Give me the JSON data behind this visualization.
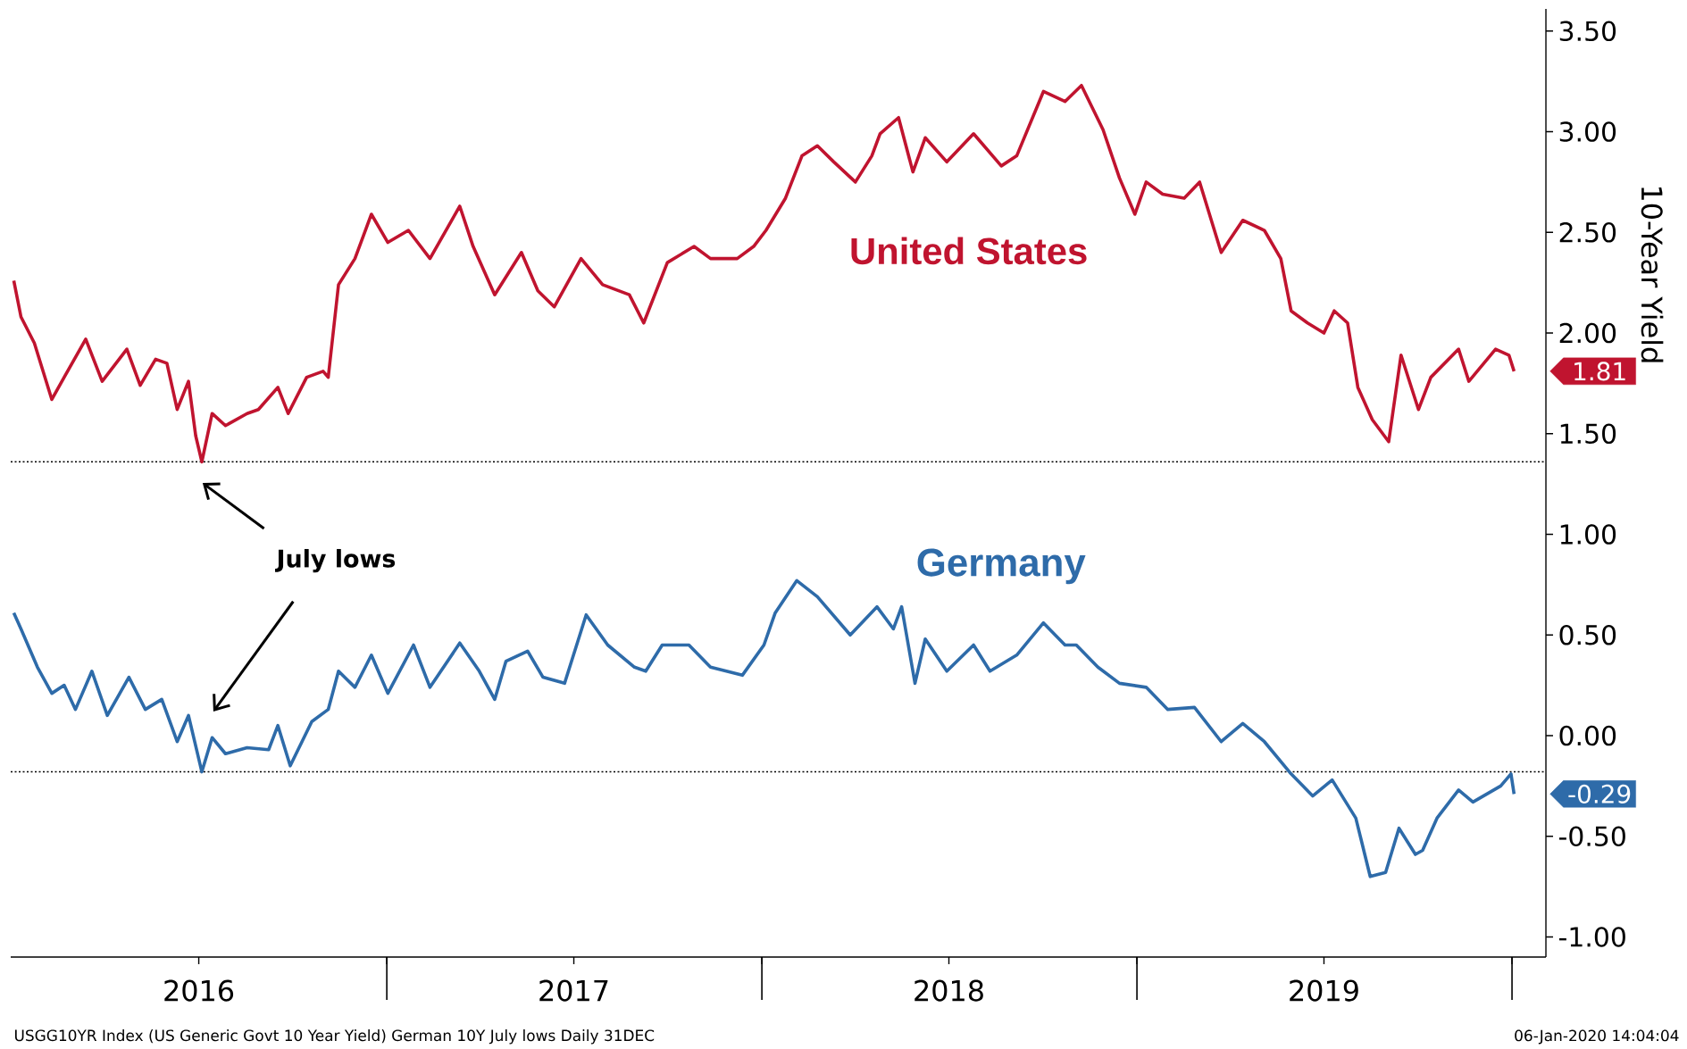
{
  "chart_data": {
    "type": "line",
    "ylabel": "10-Year Yield",
    "xlim": [
      "2016-01-01",
      "2020-02-03"
    ],
    "xticks": [
      {
        "value": "2016-07-02",
        "label": "2016"
      },
      {
        "value": "2017-01-01",
        "label": null
      },
      {
        "value": "2017-07-02",
        "label": "2017"
      },
      {
        "value": "2018-01-01",
        "label": null
      },
      {
        "value": "2018-07-02",
        "label": "2018"
      },
      {
        "value": "2019-01-01",
        "label": null
      },
      {
        "value": "2019-07-02",
        "label": "2019"
      },
      {
        "value": "2020-01-01",
        "label": null
      }
    ],
    "ylim": [
      -1.1,
      3.61
    ],
    "yticks": [
      {
        "value": -1,
        "label": "-1.00"
      },
      {
        "value": -0.5,
        "label": "-0.50"
      },
      {
        "value": 0,
        "label": "0.00"
      },
      {
        "value": 0.5,
        "label": "0.50"
      },
      {
        "value": 1,
        "label": "1.00"
      },
      {
        "value": 1.5,
        "label": "1.50"
      },
      {
        "value": 2,
        "label": "2.00"
      },
      {
        "value": 2.5,
        "label": "2.50"
      },
      {
        "value": 3,
        "label": "3.00"
      },
      {
        "value": 3.5,
        "label": "3.50"
      }
    ],
    "series": [
      {
        "name": "United States",
        "color": "#c0142f",
        "x": [
          "2016-01-04",
          "2016-01-11",
          "2016-01-24",
          "2016-02-10",
          "2016-02-22",
          "2016-03-14",
          "2016-03-30",
          "2016-04-23",
          "2016-05-06",
          "2016-05-21",
          "2016-06-01",
          "2016-06-11",
          "2016-06-22",
          "2016-06-29",
          "2016-07-05",
          "2016-07-15",
          "2016-07-28",
          "2016-08-18",
          "2016-08-29",
          "2016-09-17",
          "2016-09-27",
          "2016-10-15",
          "2016-10-31",
          "2016-11-05",
          "2016-11-15",
          "2016-12-01",
          "2016-12-17",
          "2017-01-02",
          "2017-01-22",
          "2017-02-12",
          "2017-03-13",
          "2017-03-26",
          "2017-04-16",
          "2017-05-12",
          "2017-05-28",
          "2017-06-13",
          "2017-07-09",
          "2017-07-30",
          "2017-08-25",
          "2017-09-08",
          "2017-10-01",
          "2017-10-27",
          "2017-11-12",
          "2017-12-08",
          "2017-12-24",
          "2018-01-05",
          "2018-01-24",
          "2018-02-09",
          "2018-02-24",
          "2018-03-12",
          "2018-04-02",
          "2018-04-18",
          "2018-04-26",
          "2018-05-14",
          "2018-05-28",
          "2018-06-09",
          "2018-06-30",
          "2018-07-26",
          "2018-08-22",
          "2018-09-06",
          "2018-10-02",
          "2018-10-23",
          "2018-11-08",
          "2018-11-29",
          "2018-12-15",
          "2018-12-30",
          "2019-01-10",
          "2019-01-26",
          "2019-02-16",
          "2019-03-03",
          "2019-03-24",
          "2019-04-14",
          "2019-05-05",
          "2019-05-21",
          "2019-05-31",
          "2019-06-16",
          "2019-07-02",
          "2019-07-12",
          "2019-07-25",
          "2019-08-04",
          "2019-08-18",
          "2019-09-03",
          "2019-09-15",
          "2019-10-02",
          "2019-10-14",
          "2019-11-10",
          "2019-11-20",
          "2019-12-16",
          "2019-12-29",
          "2020-01-03"
        ],
        "values": [
          2.26,
          2.08,
          1.95,
          1.67,
          1.78,
          1.97,
          1.76,
          1.92,
          1.74,
          1.87,
          1.85,
          1.62,
          1.76,
          1.49,
          1.36,
          1.6,
          1.54,
          1.6,
          1.62,
          1.73,
          1.6,
          1.78,
          1.81,
          1.78,
          2.24,
          2.37,
          2.59,
          2.45,
          2.51,
          2.37,
          2.63,
          2.43,
          2.19,
          2.4,
          2.21,
          2.13,
          2.37,
          2.24,
          2.19,
          2.05,
          2.35,
          2.43,
          2.37,
          2.37,
          2.43,
          2.51,
          2.67,
          2.88,
          2.93,
          2.85,
          2.75,
          2.88,
          2.99,
          3.07,
          2.8,
          2.97,
          2.85,
          2.99,
          2.83,
          2.88,
          3.2,
          3.15,
          3.23,
          3.01,
          2.77,
          2.59,
          2.75,
          2.69,
          2.67,
          2.75,
          2.4,
          2.56,
          2.51,
          2.37,
          2.11,
          2.05,
          2.0,
          2.11,
          2.05,
          1.73,
          1.57,
          1.46,
          1.89,
          1.62,
          1.78,
          1.92,
          1.76,
          1.92,
          1.89,
          1.81
        ]
      },
      {
        "name": "Germany",
        "color": "#2e6ba9",
        "x": [
          "2016-01-04",
          "2016-01-11",
          "2016-01-27",
          "2016-02-10",
          "2016-02-22",
          "2016-03-04",
          "2016-03-20",
          "2016-04-04",
          "2016-04-25",
          "2016-05-11",
          "2016-05-27",
          "2016-06-11",
          "2016-06-22",
          "2016-07-05",
          "2016-07-15",
          "2016-07-28",
          "2016-08-18",
          "2016-09-08",
          "2016-09-17",
          "2016-09-29",
          "2016-10-20",
          "2016-11-05",
          "2016-11-15",
          "2016-12-01",
          "2016-12-17",
          "2017-01-02",
          "2017-01-27",
          "2017-02-12",
          "2017-03-13",
          "2017-04-01",
          "2017-04-16",
          "2017-04-27",
          "2017-05-18",
          "2017-06-02",
          "2017-06-23",
          "2017-07-14",
          "2017-08-04",
          "2017-08-30",
          "2017-09-10",
          "2017-09-26",
          "2017-10-22",
          "2017-11-12",
          "2017-12-13",
          "2018-01-03",
          "2018-01-14",
          "2018-02-04",
          "2018-02-24",
          "2018-03-28",
          "2018-04-23",
          "2018-05-09",
          "2018-05-17",
          "2018-05-30",
          "2018-06-09",
          "2018-06-30",
          "2018-07-26",
          "2018-08-11",
          "2018-09-06",
          "2018-10-02",
          "2018-10-23",
          "2018-11-03",
          "2018-11-24",
          "2018-12-15",
          "2019-01-10",
          "2019-01-31",
          "2019-02-26",
          "2019-03-24",
          "2019-04-14",
          "2019-05-05",
          "2019-05-31",
          "2019-06-21",
          "2019-07-10",
          "2019-08-02",
          "2019-08-16",
          "2019-08-31",
          "2019-09-13",
          "2019-09-29",
          "2019-10-06",
          "2019-10-20",
          "2019-11-10",
          "2019-11-24",
          "2019-12-21",
          "2019-12-31",
          "2020-01-03"
        ],
        "values": [
          0.61,
          0.53,
          0.34,
          0.21,
          0.25,
          0.13,
          0.32,
          0.1,
          0.29,
          0.13,
          0.18,
          -0.03,
          0.1,
          -0.18,
          -0.01,
          -0.09,
          -0.06,
          -0.07,
          0.05,
          -0.15,
          0.07,
          0.13,
          0.32,
          0.24,
          0.4,
          0.21,
          0.45,
          0.24,
          0.46,
          0.32,
          0.18,
          0.37,
          0.42,
          0.29,
          0.26,
          0.6,
          0.45,
          0.34,
          0.32,
          0.45,
          0.45,
          0.34,
          0.3,
          0.45,
          0.61,
          0.77,
          0.69,
          0.5,
          0.64,
          0.53,
          0.64,
          0.26,
          0.48,
          0.32,
          0.45,
          0.32,
          0.4,
          0.56,
          0.45,
          0.45,
          0.34,
          0.26,
          0.24,
          0.13,
          0.14,
          -0.03,
          0.06,
          -0.03,
          -0.19,
          -0.3,
          -0.22,
          -0.41,
          -0.7,
          -0.68,
          -0.46,
          -0.59,
          -0.57,
          -0.41,
          -0.27,
          -0.33,
          -0.25,
          -0.19,
          -0.29
        ]
      }
    ],
    "ref_lines": [
      {
        "axis": "y",
        "value": 1.36,
        "color": "#000000",
        "line_style": "dotted"
      },
      {
        "axis": "y",
        "value": -0.18,
        "color": "#000000",
        "line_style": "dotted"
      }
    ],
    "annotations": [
      "July lows",
      {
        "text": "1.81",
        "x": "2020-01-03",
        "y": 1.81
      },
      {
        "text": "-0.29",
        "x": "2020-01-03",
        "y": -0.29
      },
      "USGG10YR Index (US Generic Govt 10 Year Yield) German 10Y July lows  Daily 31DEC",
      "06-Jan-2020 14:04:04"
    ]
  }
}
